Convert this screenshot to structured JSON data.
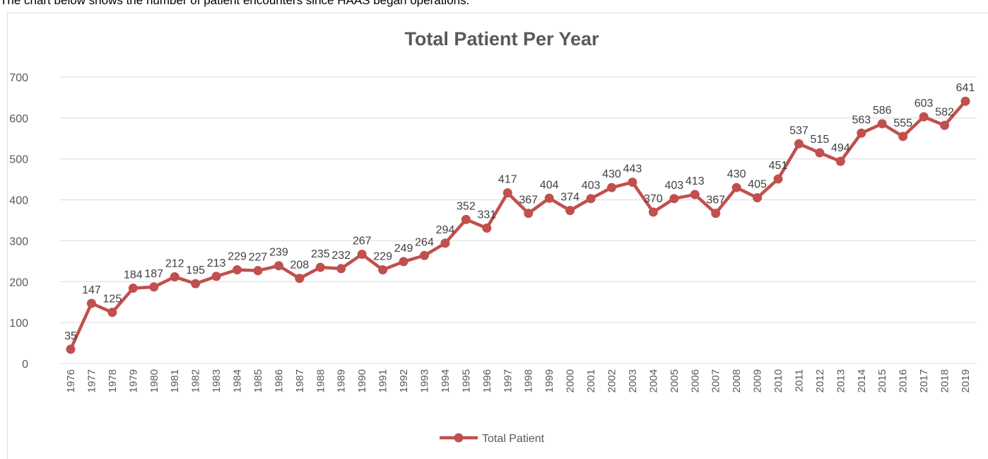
{
  "intro": "The chart below shows the number of patient encounters since HAAS began operations.",
  "chart_data": {
    "type": "line",
    "title": "Total Patient Per Year",
    "categories": [
      "1976",
      "1977",
      "1978",
      "1979",
      "1980",
      "1981",
      "1982",
      "1983",
      "1984",
      "1985",
      "1986",
      "1987",
      "1988",
      "1989",
      "1990",
      "1991",
      "1992",
      "1993",
      "1994",
      "1995",
      "1996",
      "1997",
      "1998",
      "1999",
      "2000",
      "2001",
      "2002",
      "2003",
      "2004",
      "2005",
      "2006",
      "2007",
      "2008",
      "2009",
      "2010",
      "2011",
      "2012",
      "2013",
      "2014",
      "2015",
      "2016",
      "2017",
      "2018",
      "2019"
    ],
    "series": [
      {
        "name": "Total Patient",
        "color": "#c0504d",
        "values": [
          35,
          147,
          125,
          184,
          187,
          212,
          195,
          213,
          229,
          227,
          239,
          208,
          235,
          232,
          267,
          229,
          249,
          264,
          294,
          352,
          331,
          417,
          367,
          404,
          374,
          403,
          430,
          443,
          370,
          403,
          413,
          367,
          430,
          405,
          451,
          537,
          515,
          494,
          563,
          586,
          555,
          603,
          582,
          641
        ]
      }
    ],
    "ylim": [
      0,
      700
    ],
    "yticks": [
      0,
      100,
      200,
      300,
      400,
      500,
      600,
      700
    ],
    "grid": true,
    "legend": "bottom"
  }
}
